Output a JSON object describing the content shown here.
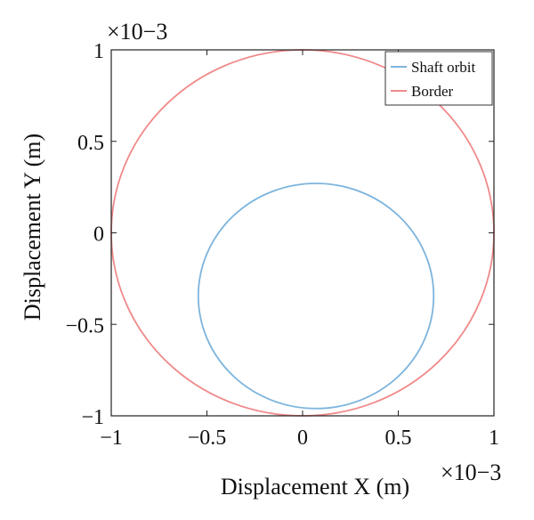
{
  "chart_data": {
    "type": "line",
    "xlabel": "Displacement X (m)",
    "ylabel": "Displacement Y (m)",
    "x_multiplier": "×10−3",
    "y_multiplier": "×10−3",
    "xlim": [
      -1,
      1
    ],
    "ylim": [
      -1,
      1
    ],
    "xticks": [
      {
        "value": -1,
        "label": "−1"
      },
      {
        "value": -0.5,
        "label": "−0.5"
      },
      {
        "value": 0,
        "label": "0"
      },
      {
        "value": 0.5,
        "label": "0.5"
      },
      {
        "value": 1,
        "label": "1"
      }
    ],
    "yticks": [
      {
        "value": -1,
        "label": "−1"
      },
      {
        "value": -0.5,
        "label": "−0.5"
      },
      {
        "value": 0,
        "label": "0"
      },
      {
        "value": 0.5,
        "label": "0.5"
      },
      {
        "value": 1,
        "label": "1"
      }
    ],
    "grid": false,
    "legend_position": "top-right",
    "series": [
      {
        "name": "Shaft orbit",
        "color": "#7db4dd",
        "shape": "circle",
        "center": [
          0.07,
          -0.345
        ],
        "radius": 0.615
      },
      {
        "name": "Border",
        "color": "#f08a8a",
        "shape": "circle",
        "center": [
          0,
          0
        ],
        "radius": 1.0
      }
    ]
  }
}
